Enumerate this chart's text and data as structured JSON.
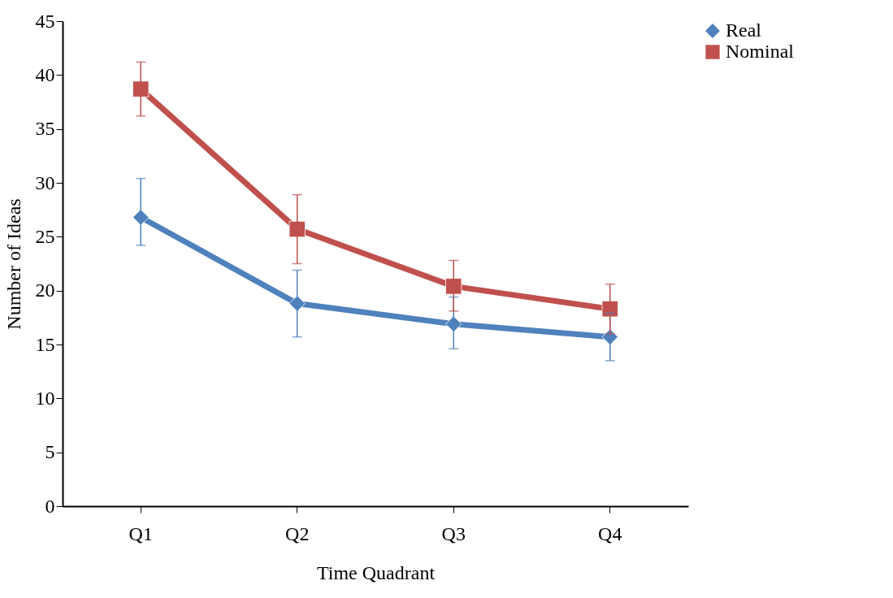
{
  "chart_data": {
    "type": "line",
    "xlabel": "Time Quadrant",
    "ylabel": "Number of Ideas",
    "categories": [
      "Q1",
      "Q2",
      "Q3",
      "Q4"
    ],
    "series": [
      {
        "name": "Real",
        "color": "#4f81bd",
        "marker": "diamond",
        "values": [
          26.8,
          18.8,
          16.9,
          15.7
        ],
        "errors": [
          [
            24.2,
            30.4
          ],
          [
            15.7,
            21.9
          ],
          [
            14.6,
            19.4
          ],
          [
            13.5,
            17.9
          ]
        ]
      },
      {
        "name": "Nominal",
        "color": "#c0504d",
        "marker": "square",
        "values": [
          38.7,
          25.7,
          20.4,
          18.3
        ],
        "errors": [
          [
            36.2,
            41.2
          ],
          [
            22.5,
            28.9
          ],
          [
            18.1,
            22.8
          ],
          [
            16.0,
            20.6
          ]
        ]
      }
    ],
    "ylim": [
      0,
      45
    ],
    "yticks": [
      0,
      5,
      10,
      15,
      20,
      25,
      30,
      35,
      40,
      45
    ],
    "grid": false,
    "legend": "right"
  }
}
